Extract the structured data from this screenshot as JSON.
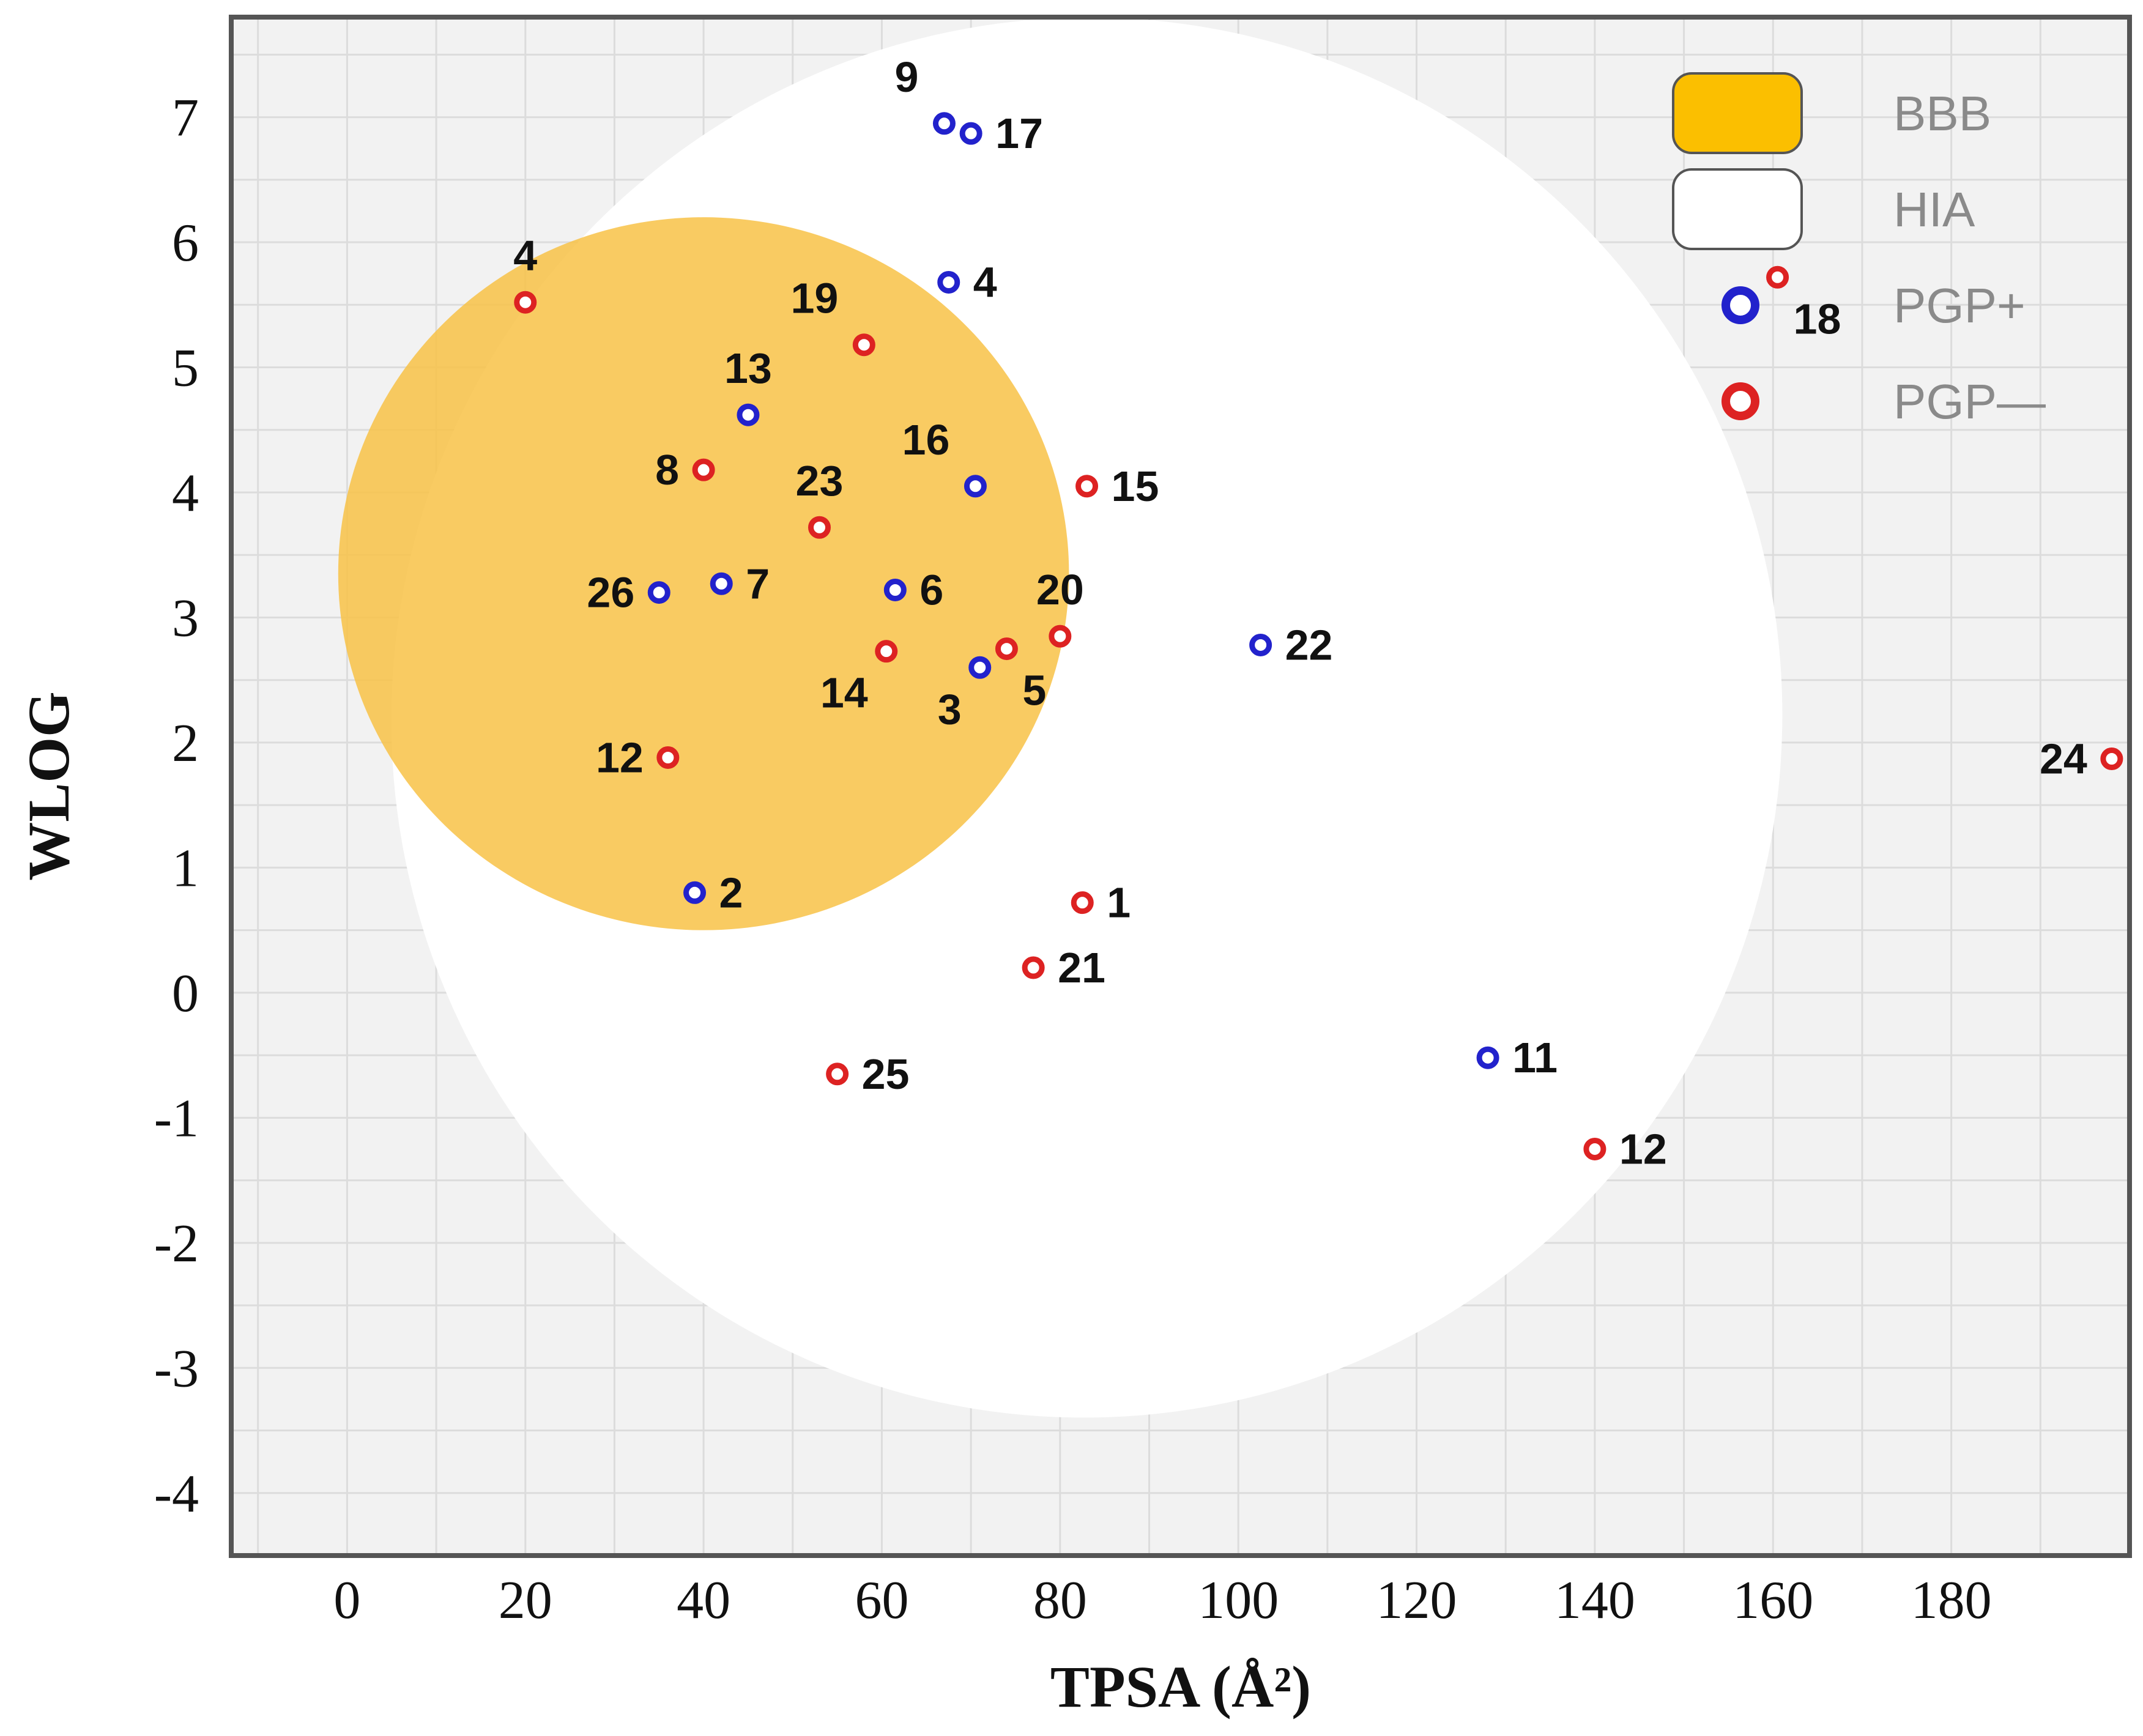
{
  "chart_data": {
    "type": "scatter",
    "title": "",
    "xlabel": "TPSA (Å²)",
    "ylabel": "WLOG",
    "xlim": [
      -13,
      200
    ],
    "ylim": [
      -4.5,
      7.8
    ],
    "x_ticks": [
      0,
      20,
      40,
      60,
      80,
      100,
      120,
      140,
      160,
      180
    ],
    "y_ticks": [
      7,
      6,
      5,
      4,
      3,
      2,
      1,
      0,
      -1,
      -2,
      -3,
      -4
    ],
    "regions": [
      {
        "name": "HIA",
        "shape": "ellipse",
        "cx": 83,
        "cy": 2.2,
        "rx": 78,
        "ry": 5.6,
        "rotation_deg": 15,
        "color": "#ffffff"
      },
      {
        "name": "BBB",
        "shape": "ellipse",
        "cx": 40,
        "cy": 3.35,
        "rx": 41,
        "ry": 2.85,
        "rotation_deg": 0,
        "color": "#f8c246"
      }
    ],
    "legend": {
      "position": "top-right",
      "entries": [
        {
          "label": "BBB",
          "kind": "region",
          "color": "#fbbf00"
        },
        {
          "label": "HIA",
          "kind": "region",
          "color": "#ffffff"
        },
        {
          "label": "PGP+",
          "kind": "point",
          "color": "#2222cc"
        },
        {
          "label": "PGP—",
          "kind": "point",
          "color": "#dd2222"
        }
      ]
    },
    "series": [
      {
        "name": "PGP+",
        "color": "#2222cc",
        "points": [
          {
            "label": "9",
            "x": 67,
            "y": 6.95,
            "label_side": "above-left"
          },
          {
            "label": "17",
            "x": 70,
            "y": 6.87,
            "label_side": "right"
          },
          {
            "label": "4",
            "x": 67.5,
            "y": 5.68,
            "label_side": "right"
          },
          {
            "label": "13",
            "x": 45,
            "y": 4.62,
            "label_side": "above"
          },
          {
            "label": "16",
            "x": 70.5,
            "y": 4.05,
            "label_side": "above-left"
          },
          {
            "label": "26",
            "x": 35,
            "y": 3.2,
            "label_side": "left"
          },
          {
            "label": "7",
            "x": 42,
            "y": 3.27,
            "label_side": "right"
          },
          {
            "label": "6",
            "x": 61.5,
            "y": 3.22,
            "label_side": "right"
          },
          {
            "label": "3",
            "x": 71,
            "y": 2.6,
            "label_side": "below-left"
          },
          {
            "label": "22",
            "x": 102.5,
            "y": 2.78,
            "label_side": "right"
          },
          {
            "label": "2",
            "x": 39,
            "y": 0.8,
            "label_side": "right"
          },
          {
            "label": "11",
            "x": 128,
            "y": -0.52,
            "label_side": "right"
          }
        ]
      },
      {
        "name": "PGP—",
        "color": "#dd2222",
        "points": [
          {
            "label": "4",
            "x": 20,
            "y": 5.52,
            "label_side": "above"
          },
          {
            "label": "19",
            "x": 58,
            "y": 5.18,
            "label_side": "above-left"
          },
          {
            "label": "8",
            "x": 40,
            "y": 4.18,
            "label_side": "left"
          },
          {
            "label": "23",
            "x": 53,
            "y": 3.72,
            "label_side": "above"
          },
          {
            "label": "15",
            "x": 83,
            "y": 4.05,
            "label_side": "right"
          },
          {
            "label": "20",
            "x": 80,
            "y": 2.85,
            "label_side": "above"
          },
          {
            "label": "14",
            "x": 60.5,
            "y": 2.73,
            "label_side": "below-left"
          },
          {
            "label": "5",
            "x": 74,
            "y": 2.75,
            "label_side": "below-right"
          },
          {
            "label": "12",
            "x": 36,
            "y": 1.88,
            "label_side": "left"
          },
          {
            "label": "1",
            "x": 82.5,
            "y": 0.72,
            "label_side": "right"
          },
          {
            "label": "21",
            "x": 77,
            "y": 0.2,
            "label_side": "right"
          },
          {
            "label": "25",
            "x": 55,
            "y": -0.65,
            "label_side": "right"
          },
          {
            "label": "12",
            "x": 140,
            "y": -1.25,
            "label_side": "right"
          },
          {
            "label": "24",
            "x": 198,
            "y": 1.87,
            "label_side": "left"
          },
          {
            "label": "18",
            "x": 160.5,
            "y": 5.72,
            "label_side": "below-right"
          }
        ]
      }
    ]
  }
}
